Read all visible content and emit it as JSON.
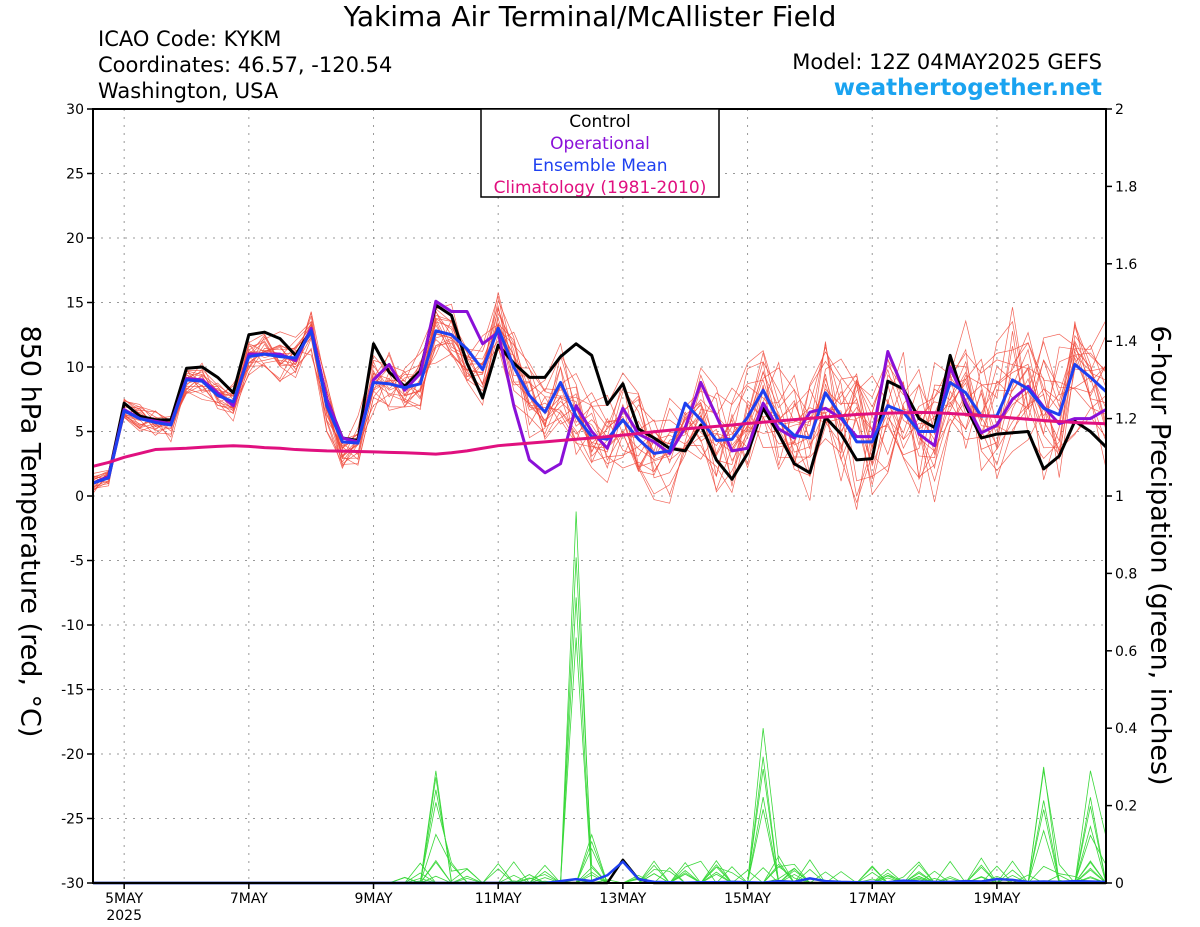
{
  "header": {
    "title": "Yakima Air Terminal/McAllister Field",
    "icao": "ICAO Code: KYKM",
    "coordinates": "Coordinates: 46.57, -120.54",
    "region": "Washington, USA",
    "model": "Model: 12Z 04MAY2025 GEFS",
    "site": "weathertogether.net"
  },
  "axes": {
    "left_label": "850 hPa Temperature (red, °C)",
    "right_label": "6-hour Precipation (green, inches)",
    "year_label": "2025"
  },
  "chart_data": {
    "type": "line",
    "x_unit": "forecast hour from 12Z 04 May 2025 (6-hourly)",
    "x_range": [
      0,
      390
    ],
    "ylim_left": [
      -30,
      30
    ],
    "yticks_left": [
      -30,
      -25,
      -20,
      -15,
      -10,
      -5,
      0,
      5,
      10,
      15,
      20,
      25,
      30
    ],
    "ylim_right": [
      0,
      2
    ],
    "yticks_right": [
      "0",
      "0.2",
      "0.4",
      "0.6",
      "0.8",
      "1",
      "1.2",
      "1.4",
      "1.6",
      "1.8",
      "2"
    ],
    "xticks": [
      {
        "label": "5MAY",
        "hour": 12
      },
      {
        "label": "7MAY",
        "hour": 60
      },
      {
        "label": "9MAY",
        "hour": 108
      },
      {
        "label": "11MAY",
        "hour": 156
      },
      {
        "label": "13MAY",
        "hour": 204
      },
      {
        "label": "15MAY",
        "hour": 252
      },
      {
        "label": "17MAY",
        "hour": 300
      },
      {
        "label": "19MAY",
        "hour": 348
      }
    ],
    "grid": true,
    "legend": {
      "position": "top-center",
      "entries": [
        {
          "label": "Control",
          "color": "#000000"
        },
        {
          "label": "Operational",
          "color": "#8a10d8"
        },
        {
          "label": "Ensemble Mean",
          "color": "#1e40f0"
        },
        {
          "label": "Climatology (1981-2010)",
          "color": "#e0107f"
        }
      ]
    },
    "series": [
      {
        "name": "Control",
        "axis": "left",
        "color": "#000000",
        "values": [
          1.0,
          1.5,
          7.2,
          6.2,
          5.9,
          5.9,
          9.9,
          10.0,
          9.2,
          8.0,
          12.5,
          12.7,
          12.2,
          10.9,
          12.9,
          7.5,
          4.5,
          4.3,
          11.8,
          9.6,
          8.5,
          9.7,
          14.8,
          14.0,
          10.3,
          7.6,
          11.7,
          10.3,
          9.2,
          9.2,
          10.8,
          11.8,
          10.9,
          7.1,
          8.7,
          5.2,
          4.5,
          3.7,
          3.5,
          5.5,
          2.8,
          1.3,
          3.3,
          6.8,
          4.8,
          2.5,
          1.8,
          6.1,
          4.8,
          2.8,
          2.9,
          8.9,
          8.3,
          6.0,
          5.3,
          10.9,
          7.0,
          4.5,
          4.8,
          4.9,
          5.0,
          2.1,
          3.1,
          5.8,
          5.0,
          3.8
        ]
      },
      {
        "name": "Operational",
        "axis": "left",
        "color": "#8a10d8",
        "values": [
          1.0,
          1.5,
          6.7,
          6.0,
          5.8,
          5.6,
          9.1,
          9.0,
          8.0,
          7.0,
          11.0,
          11.0,
          11.0,
          10.5,
          13.0,
          7.5,
          4.5,
          4.2,
          9.0,
          10.2,
          8.2,
          9.5,
          15.1,
          14.3,
          14.3,
          11.8,
          12.7,
          7.0,
          2.8,
          1.8,
          2.5,
          7.0,
          5.0,
          3.7,
          6.8,
          4.8,
          4.2,
          3.3,
          5.3,
          8.8,
          6.2,
          3.5,
          3.7,
          7.2,
          5.2,
          4.5,
          6.5,
          6.8,
          6.0,
          4.6,
          4.6,
          11.2,
          8.3,
          4.8,
          3.9,
          10.0,
          7.2,
          4.9,
          5.5,
          7.5,
          8.5,
          6.9,
          5.6,
          6.0,
          6.0,
          6.7
        ]
      },
      {
        "name": "Ensemble Mean",
        "axis": "left",
        "color": "#1e40f0",
        "values": [
          1.0,
          1.4,
          6.6,
          6.0,
          5.7,
          5.5,
          9.0,
          8.9,
          7.8,
          7.3,
          10.8,
          11.0,
          10.8,
          10.7,
          12.8,
          7.0,
          4.2,
          4.1,
          8.8,
          8.7,
          8.4,
          8.7,
          12.8,
          12.5,
          11.4,
          9.8,
          13.0,
          10.0,
          7.8,
          6.5,
          8.8,
          6.2,
          4.6,
          4.4,
          5.9,
          4.4,
          3.3,
          3.5,
          7.2,
          5.9,
          4.3,
          4.4,
          6.1,
          8.2,
          5.8,
          4.7,
          4.5,
          8.0,
          6.2,
          4.2,
          4.2,
          7.0,
          6.5,
          5.0,
          5.0,
          8.8,
          8.0,
          6.2,
          6.2,
          9.0,
          8.3,
          6.8,
          6.3,
          10.2,
          9.2,
          8.1
        ]
      },
      {
        "name": "Climatology (1981-2010)",
        "axis": "left",
        "color": "#e0107f",
        "values": [
          2.3,
          2.6,
          3.0,
          3.3,
          3.6,
          3.65,
          3.7,
          3.78,
          3.85,
          3.9,
          3.85,
          3.75,
          3.7,
          3.6,
          3.55,
          3.5,
          3.48,
          3.45,
          3.42,
          3.38,
          3.35,
          3.3,
          3.25,
          3.35,
          3.5,
          3.7,
          3.9,
          4.0,
          4.1,
          4.2,
          4.3,
          4.4,
          4.5,
          4.6,
          4.72,
          4.85,
          4.98,
          5.1,
          5.2,
          5.3,
          5.4,
          5.5,
          5.62,
          5.72,
          5.82,
          5.92,
          6.02,
          6.12,
          6.22,
          6.32,
          6.38,
          6.42,
          6.45,
          6.48,
          6.45,
          6.4,
          6.33,
          6.25,
          6.15,
          6.05,
          5.95,
          5.85,
          5.78,
          5.7,
          5.65,
          5.6
        ]
      },
      {
        "name": "Control precipitation",
        "axis": "right",
        "color": "#000000",
        "values": [
          0,
          0,
          0,
          0,
          0,
          0,
          0,
          0,
          0,
          0,
          0,
          0,
          0,
          0,
          0,
          0,
          0,
          0,
          0,
          0,
          0,
          0,
          0,
          0,
          0,
          0,
          0,
          0,
          0,
          0,
          0,
          0,
          0,
          0,
          0.06,
          0.01,
          0,
          0,
          0,
          0,
          0,
          0,
          0,
          0,
          0,
          0,
          0,
          0,
          0,
          0,
          0,
          0,
          0,
          0,
          0,
          0,
          0,
          0,
          0,
          0,
          0,
          0,
          0,
          0,
          0,
          0
        ]
      },
      {
        "name": "Ensemble mean precipitation",
        "axis": "right",
        "color": "#1e40f0",
        "values": [
          0,
          0,
          0,
          0,
          0,
          0,
          0,
          0,
          0,
          0,
          0,
          0,
          0,
          0,
          0,
          0,
          0,
          0,
          0,
          0,
          0,
          0,
          0,
          0,
          0,
          0,
          0,
          0,
          0,
          0,
          0.005,
          0.01,
          0.005,
          0.02,
          0.055,
          0.01,
          0.003,
          0.002,
          0.001,
          0.002,
          0.002,
          0.003,
          0.002,
          0.001,
          0.005,
          0.003,
          0.012,
          0.005,
          0.003,
          0.002,
          0.003,
          0.002,
          0.006,
          0.004,
          0.003,
          0.003,
          0.005,
          0.004,
          0.01,
          0.008,
          0.003,
          0.004,
          0.003,
          0.005,
          0.004,
          0.003
        ]
      }
    ],
    "member_color_temp": "#f04a3c",
    "member_color_precip": "#3ad83a"
  }
}
